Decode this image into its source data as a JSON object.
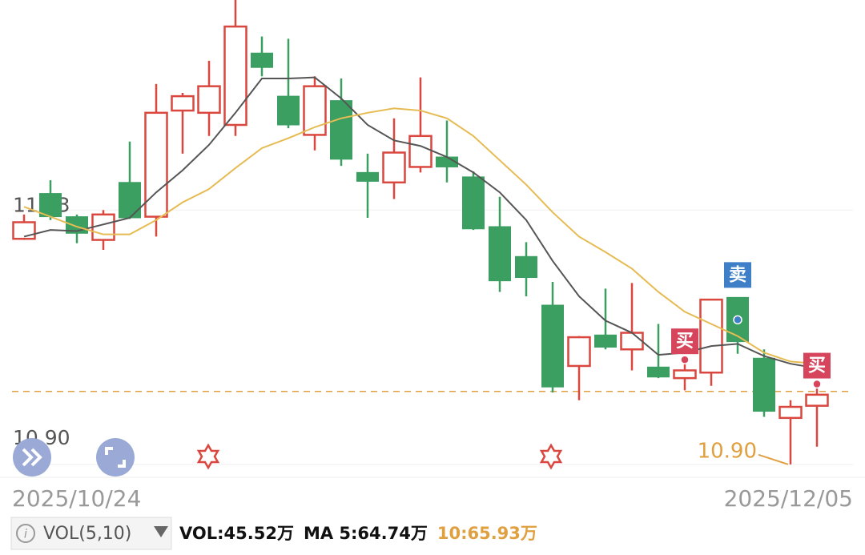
{
  "chart_data": {
    "type": "candlestick",
    "categories": [
      "2025/10/24",
      null,
      null,
      null,
      null,
      null,
      null,
      null,
      null,
      null,
      null,
      null,
      null,
      null,
      null,
      null,
      null,
      null,
      null,
      null,
      null,
      null,
      null,
      null,
      null,
      null,
      null,
      null,
      null,
      null,
      "2025/12/05"
    ],
    "opens": [
      11.104,
      11.145,
      11.124,
      11.103,
      11.155,
      11.124,
      11.22,
      11.218,
      11.207,
      11.272,
      11.233,
      11.198,
      11.229,
      11.164,
      11.155,
      11.169,
      11.178,
      11.16,
      11.115,
      11.088,
      11.044,
      10.989,
      11.017,
      11.004,
      10.988,
      10.978,
      10.983,
      11.051,
      10.996,
      10.942,
      10.953
    ],
    "closes": [
      11.119,
      11.124,
      11.109,
      11.126,
      11.123,
      11.218,
      11.233,
      11.242,
      11.296,
      11.259,
      11.207,
      11.242,
      11.176,
      11.156,
      11.182,
      11.197,
      11.169,
      11.113,
      11.066,
      11.069,
      10.97,
      11.015,
      11.006,
      11.019,
      10.979,
      10.985,
      11.049,
      11.011,
      10.948,
      10.952,
      10.963
    ],
    "highs": [
      11.126,
      11.157,
      11.126,
      11.13,
      11.192,
      11.244,
      11.236,
      11.265,
      11.32,
      11.287,
      11.285,
      11.251,
      11.249,
      11.181,
      11.213,
      11.25,
      11.211,
      11.165,
      11.142,
      11.101,
      11.065,
      11.016,
      11.059,
      11.064,
      11.027,
      10.991,
      11.049,
      11.051,
      11.004,
      10.958,
      10.969
    ],
    "lows": [
      11.103,
      11.121,
      11.1,
      11.094,
      11.122,
      11.106,
      11.181,
      11.197,
      11.197,
      11.251,
      11.204,
      11.184,
      11.17,
      11.123,
      11.14,
      11.164,
      11.155,
      11.112,
      11.056,
      11.052,
      10.965,
      10.958,
      11.004,
      10.985,
      10.978,
      10.967,
      10.971,
      11.0,
      10.943,
      10.9,
      10.916
    ],
    "up_color": "#d9473f",
    "down_color": "#3a9f61",
    "series": [
      {
        "name": "MA5",
        "color": "#555555",
        "values": [
          11.106,
          11.112,
          11.111,
          11.117,
          11.123,
          11.146,
          11.166,
          11.189,
          11.218,
          11.249,
          11.249,
          11.25,
          11.231,
          11.207,
          11.193,
          11.188,
          11.178,
          11.164,
          11.146,
          11.121,
          11.084,
          11.052,
          11.03,
          11.019,
          10.999,
          11.001,
          11.007,
          11.009,
          10.998,
          10.991,
          10.987
        ]
      },
      {
        "name": "MA10",
        "color": "#e6bb52",
        "values": [
          11.133,
          11.124,
          11.115,
          11.108,
          11.108,
          11.121,
          11.137,
          11.149,
          11.168,
          11.186,
          11.195,
          11.205,
          11.213,
          11.218,
          11.222,
          11.22,
          11.213,
          11.197,
          11.175,
          11.153,
          11.128,
          11.106,
          11.092,
          11.077,
          11.056,
          11.038,
          11.027,
          11.016,
          11.001,
          10.993,
          10.991
        ]
      }
    ],
    "ylim": [
      10.889,
      11.32
    ],
    "yticks": [
      11.13,
      {
        "value": 10.9,
        "label": "10.90"
      }
    ],
    "ref_line": {
      "value": 10.966,
      "color": "#e0a040"
    },
    "signals": [
      {
        "index": 25,
        "label": "买",
        "color": "#d6455c"
      },
      {
        "index": 27,
        "label": "卖",
        "color": "#3f7fc8"
      },
      {
        "index": 30,
        "label": "买",
        "color": "#d6455c"
      }
    ],
    "low_annotation": {
      "index": 29,
      "text": "10.90",
      "color": "#e0a040"
    },
    "indicator": "VOL(5,10)",
    "stats": [
      {
        "text": "VOL:45.52万",
        "color": "#111111"
      },
      {
        "text": "MA 5:64.74万",
        "color": "#111111"
      },
      {
        "text": "10:65.93万",
        "color": "#e0a040"
      }
    ]
  }
}
